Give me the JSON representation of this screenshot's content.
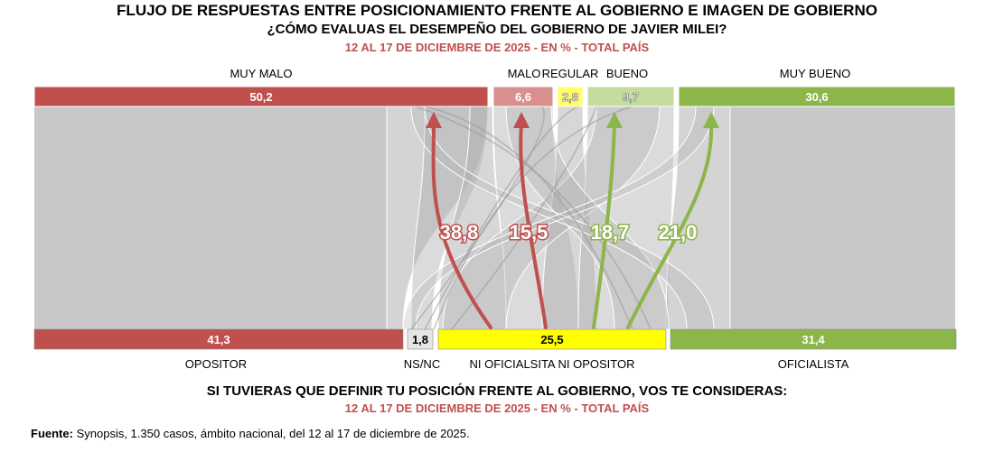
{
  "header": {
    "title": "FLUJO DE RESPUESTAS ENTRE POSICIONAMIENTO FRENTE AL GOBIERNO E IMAGEN DE GOBIERNO",
    "question": "¿CÓMO EVALUAS EL DESEMPEÑO DEL GOBIERNO DE JAVIER MILEI?",
    "date": "12 AL 17 DE DICIEMBRE DE 2025 - EN % - TOTAL PAÍS"
  },
  "footer": {
    "question": "SI TUVIERAS QUE DEFINIR TU POSICIÓN FRENTE AL GOBIERNO, VOS TE CONSIDERAS:",
    "date": "12 AL 17 DE DICIEMBRE DE 2025 - EN % - TOTAL PAÍS",
    "source_label": "Fuente:",
    "source_text": "Synopsis, 1.350 casos, ámbito nacional, del 12 al 17 de diciembre de 2025."
  },
  "colors": {
    "red": "#c0504d",
    "light_red": "#d98f8d",
    "yellow": "#ffff00",
    "light_yellow": "#ffff66",
    "light_green": "#c4dc9e",
    "green": "#8cb54a",
    "flow_gray": "#c8c8c8",
    "white": "#ffffff"
  },
  "chart_data": {
    "type": "sankey",
    "top_nodes": [
      {
        "label": "MUY MALO",
        "value": "50,2",
        "color": "#c0504d"
      },
      {
        "label": "MALO",
        "value": "6,6",
        "color": "#d98f8d"
      },
      {
        "label": "REGULAR",
        "value": "2,8",
        "color": "#ffff66"
      },
      {
        "label": "BUENO",
        "value": "9,7",
        "color": "#c4dc9e"
      },
      {
        "label": "MUY BUENO",
        "value": "30,6",
        "color": "#8cb54a"
      }
    ],
    "bottom_nodes": [
      {
        "label": "OPOSITOR",
        "value": "41,3",
        "color": "#c0504d"
      },
      {
        "label": "NS/NC",
        "value": "1,8",
        "color": "#e6e6e6"
      },
      {
        "label": "NI OFICIALSITA NI OPOSITOR",
        "value": "25,5",
        "color": "#ffff00"
      },
      {
        "label": "OFICIALISTA",
        "value": "31,4",
        "color": "#8cb54a"
      }
    ],
    "highlighted_flows": [
      {
        "from": "NI OFICIALSITA NI OPOSITOR",
        "to": "MUY MALO",
        "value": "38,8",
        "color": "#c0504d"
      },
      {
        "from": "NI OFICIALSITA NI OPOSITOR",
        "to": "MALO",
        "value": "15,5",
        "color": "#c0504d"
      },
      {
        "from": "NI OFICIALSITA NI OPOSITOR",
        "to": "BUENO",
        "value": "18,7",
        "color": "#8cb54a"
      },
      {
        "from": "NI OFICIALSITA NI OPOSITOR",
        "to": "MUY BUENO",
        "value": "21,0",
        "color": "#8cb54a"
      }
    ]
  }
}
